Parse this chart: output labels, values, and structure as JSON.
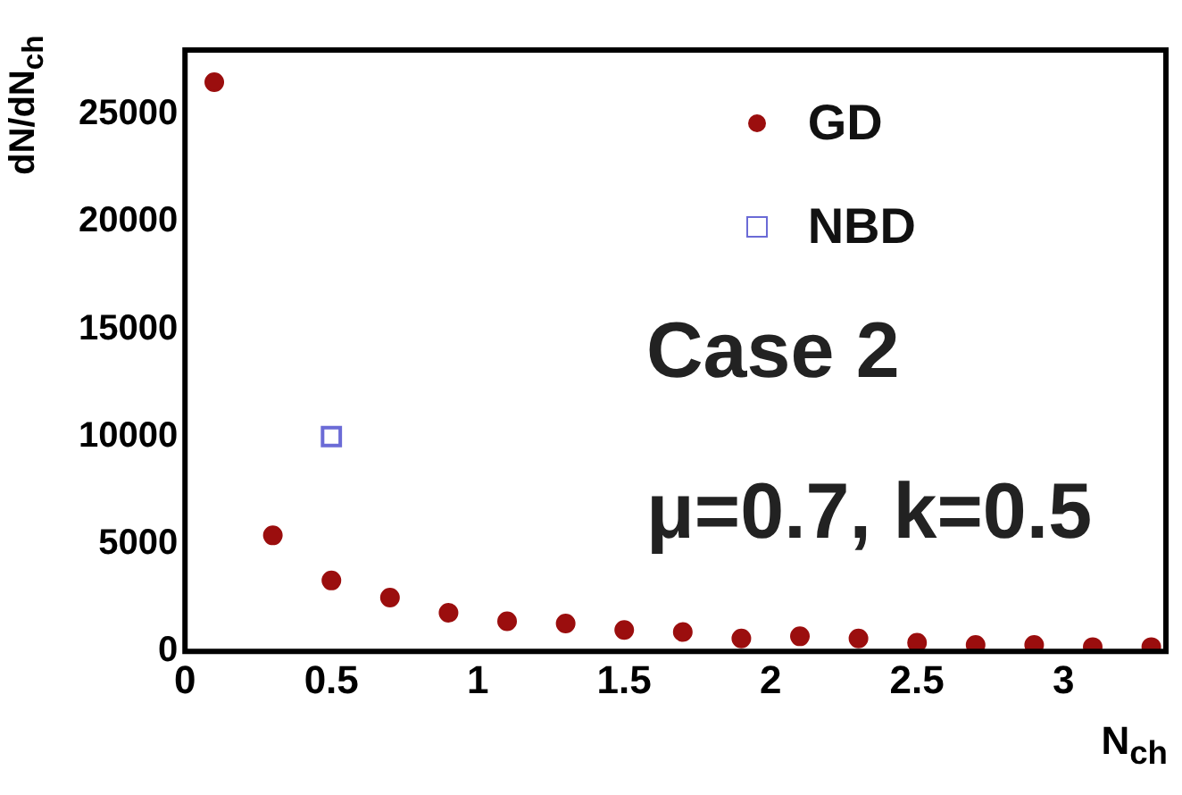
{
  "chart_data": {
    "type": "scatter",
    "xlabel": "N$_{ch}$",
    "ylabel": "dN/dN$_{ch}$",
    "annotations": [
      "Case 2",
      "μ=0.7, k=0.5"
    ],
    "series": [
      {
        "name": "GD",
        "color": "#9b0e0e",
        "marker": "circle",
        "x": [
          0.1,
          0.3,
          0.5,
          0.7,
          0.9,
          1.1,
          1.3,
          1.5,
          1.7,
          1.9,
          2.1,
          2.3,
          2.5,
          2.7,
          2.9,
          3.1,
          3.3
        ],
        "values": [
          26500,
          5400,
          3300,
          2500,
          1800,
          1400,
          1300,
          1000,
          900,
          600,
          700,
          600,
          400,
          300,
          300,
          200,
          200
        ]
      },
      {
        "name": "NBD",
        "color": "#6b6bd6",
        "marker": "square",
        "x": [
          0.5
        ],
        "values": [
          10000
        ]
      }
    ],
    "xlim": [
      0,
      3.35
    ],
    "ylim": [
      0,
      28000
    ],
    "xticks": [
      0,
      0.5,
      1,
      1.5,
      2,
      2.5,
      3
    ],
    "yticks": [
      0,
      5000,
      10000,
      15000,
      20000,
      25000
    ],
    "grid": false,
    "legend": "top right"
  }
}
